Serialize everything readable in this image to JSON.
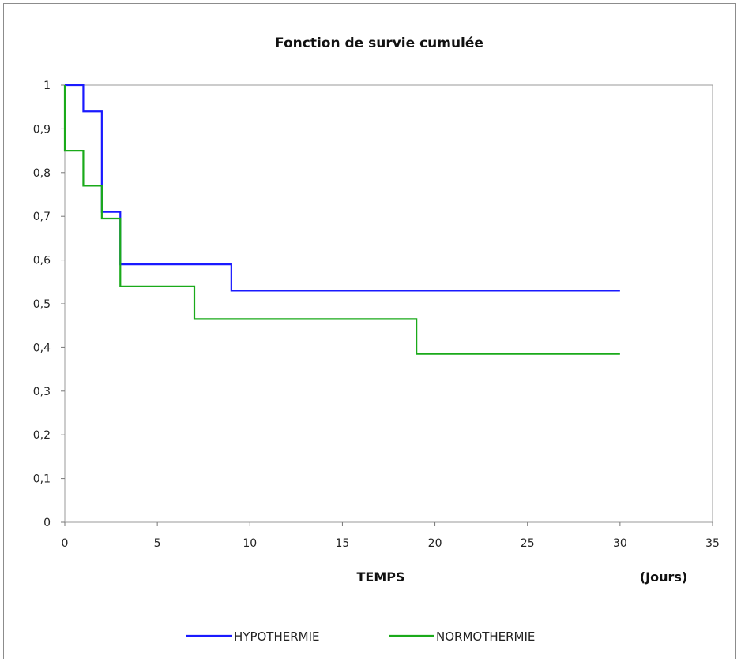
{
  "chart_data": {
    "type": "line",
    "step": true,
    "title": "Fonction de survie cumulée",
    "xlabel": "TEMPS",
    "xunit": "(Jours)",
    "ylabel": "",
    "xlim": [
      0,
      35
    ],
    "ylim": [
      0,
      1
    ],
    "xticks": [
      0,
      5,
      10,
      15,
      20,
      25,
      30,
      35
    ],
    "xtick_labels": [
      "0",
      "5",
      "10",
      "15",
      "20",
      "25",
      "30",
      "35"
    ],
    "yticks": [
      0,
      0.1,
      0.2,
      0.3,
      0.4,
      0.5,
      0.6,
      0.7,
      0.8,
      0.9,
      1
    ],
    "ytick_labels": [
      "0",
      "0,1",
      "0,2",
      "0,3",
      "0,4",
      "0,5",
      "0,6",
      "0,7",
      "0,8",
      "0,9",
      "1"
    ],
    "grid": false,
    "legend_position": "bottom",
    "series": [
      {
        "name": "HYPOTHERMIE",
        "color": "#1a1aff",
        "x": [
          0,
          1,
          2,
          3,
          9,
          30
        ],
        "y": [
          1.0,
          0.94,
          0.71,
          0.59,
          0.53,
          0.53
        ]
      },
      {
        "name": "NORMOTHERMIE",
        "color": "#1aaa1a",
        "x": [
          0,
          0,
          1,
          2,
          3,
          7,
          19,
          30
        ],
        "y": [
          1.0,
          0.85,
          0.77,
          0.695,
          0.54,
          0.465,
          0.385,
          0.385
        ]
      }
    ]
  }
}
